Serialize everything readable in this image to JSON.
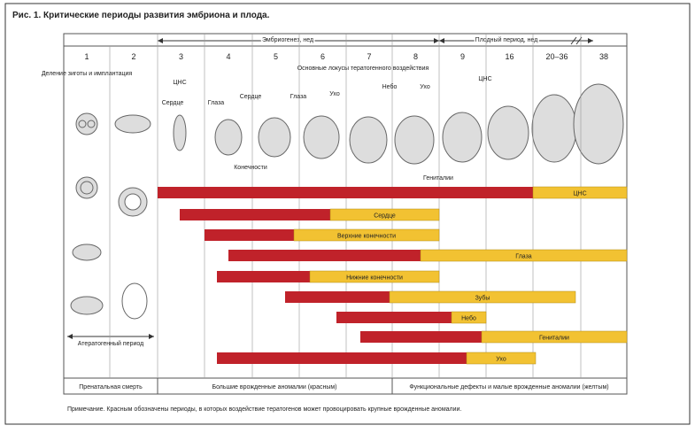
{
  "title": "Рис. 1. Критические периоды развития эмбриона и плода.",
  "header": {
    "embryo": "Эмбриогенез, нед",
    "fetal": "Плодный период, нед"
  },
  "columns": [
    "1",
    "2",
    "3",
    "4",
    "5",
    "6",
    "7",
    "8",
    "9",
    "16",
    "20–36",
    "38"
  ],
  "labels": {
    "zygote": "Деление зиготы и имплантация",
    "loci": "Основные локусы тератогенного воздействия",
    "ateratogenic": "Атератогенный период"
  },
  "organ_labels": [
    "ЦНС",
    "Сердце",
    "Глаза",
    "Сердце",
    "Конечности",
    "Глаза",
    "Ухо",
    "Небо",
    "Ухо",
    "ЦНС",
    "Гениталии"
  ],
  "bars": [
    "ЦНС",
    "Сердце",
    "Верхние конечности",
    "Глаза",
    "Нижние конечности",
    "Зубы",
    "Небо",
    "Гениталии",
    "Ухо"
  ],
  "footer": [
    "Пренатальная смерть",
    "Большие врожденные аномалии (красным)",
    "Функциональные дефекты и малые врожденные аномалии (желтым)"
  ],
  "note": "Примечание. Красным обозначены периоды, в которых воздействие тератогенов может провоцировать крупные врожденные аномалии."
}
